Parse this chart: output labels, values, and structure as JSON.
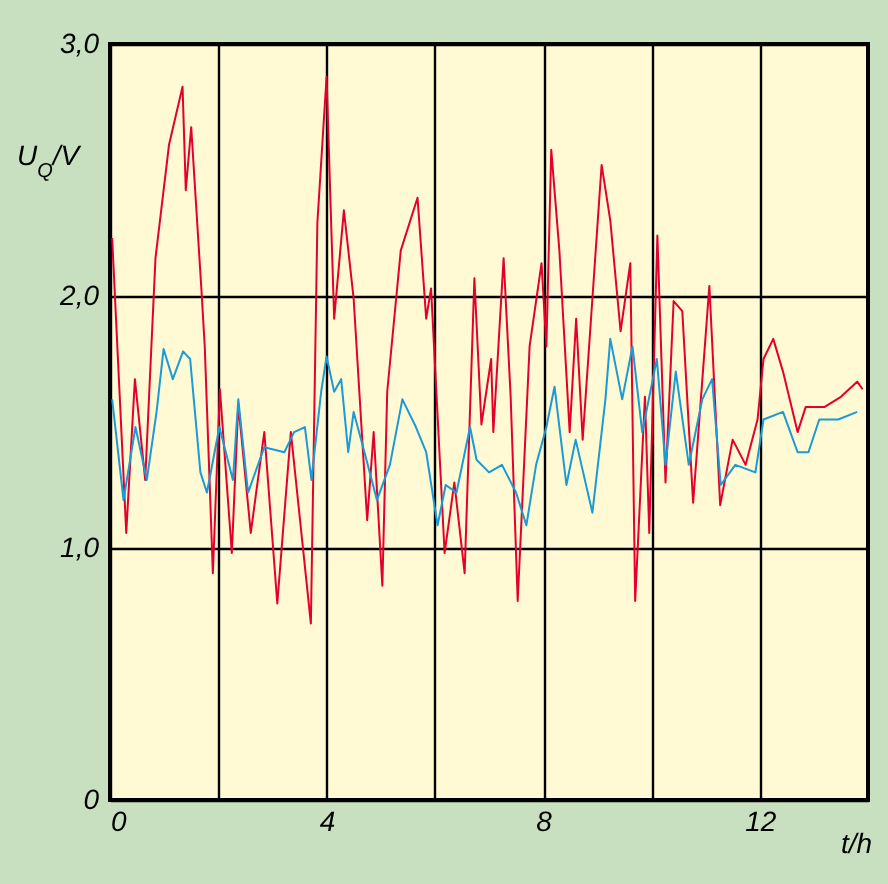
{
  "chart_data": {
    "type": "line",
    "xlabel": "t/h",
    "ylabel": "U$_{Q}$/V",
    "xlim": [
      0,
      14
    ],
    "ylim": [
      0,
      3
    ],
    "xticks": [
      0,
      {
        "value": 2,
        "label": null
      },
      4,
      {
        "value": 6,
        "label": null
      },
      8,
      {
        "value": 10,
        "label": null
      },
      12
    ],
    "yticks": [
      0,
      {
        "value": 1,
        "label": "1,0"
      },
      {
        "value": 2,
        "label": "2,0"
      },
      {
        "value": 3,
        "label": "3,0"
      }
    ],
    "grid": true,
    "line_style": "solid",
    "series": [
      {
        "color": "#e3002d",
        "x": [
          0.04,
          0.3,
          0.46,
          0.65,
          0.84,
          1.09,
          1.34,
          1.4,
          1.5,
          1.57,
          1.69,
          1.75,
          1.9,
          2.03,
          2.25,
          2.37,
          2.6,
          2.85,
          3.09,
          3.34,
          3.71,
          3.83,
          4.0,
          4.14,
          4.32,
          4.5,
          4.75,
          4.87,
          5.03,
          5.12,
          5.37,
          5.68,
          5.84,
          5.93,
          6.18,
          6.36,
          6.55,
          6.73,
          6.86,
          7.04,
          7.08,
          7.27,
          7.4,
          7.53,
          7.75,
          7.97,
          8.06,
          8.15,
          8.3,
          8.49,
          8.61,
          8.73,
          8.91,
          9.08,
          9.24,
          9.43,
          9.61,
          9.7,
          9.88,
          9.96,
          10.11,
          10.26,
          10.41,
          10.57,
          10.77,
          11.07,
          11.27,
          11.5,
          11.74,
          11.96,
          12.07,
          12.25,
          12.43,
          12.7,
          12.85,
          13.2,
          13.5,
          13.8,
          13.9
        ],
        "values": [
          2.23,
          1.06,
          1.67,
          1.27,
          2.15,
          2.6,
          2.83,
          2.42,
          2.67,
          2.43,
          2.02,
          1.8,
          0.9,
          1.63,
          0.98,
          1.57,
          1.06,
          1.46,
          0.78,
          1.46,
          0.7,
          2.29,
          2.87,
          1.91,
          2.34,
          1.99,
          1.11,
          1.46,
          0.85,
          1.62,
          2.18,
          2.39,
          1.91,
          2.03,
          0.98,
          1.26,
          0.9,
          2.07,
          1.49,
          1.75,
          1.46,
          2.15,
          1.6,
          0.79,
          1.8,
          2.13,
          1.8,
          2.58,
          2.18,
          1.46,
          1.91,
          1.43,
          1.99,
          2.52,
          2.3,
          1.86,
          2.13,
          0.79,
          1.6,
          1.06,
          2.24,
          1.26,
          1.98,
          1.94,
          1.18,
          2.04,
          1.17,
          1.43,
          1.33,
          1.51,
          1.75,
          1.83,
          1.7,
          1.46,
          1.56,
          1.56,
          1.6,
          1.66,
          1.63
        ]
      },
      {
        "color": "#1a9ad6",
        "x": [
          0.04,
          0.25,
          0.47,
          0.68,
          0.86,
          0.99,
          1.16,
          1.35,
          1.48,
          1.67,
          1.79,
          2.02,
          2.27,
          2.37,
          2.55,
          2.85,
          3.22,
          3.4,
          3.6,
          3.72,
          3.9,
          4.0,
          4.14,
          4.27,
          4.4,
          4.5,
          4.7,
          4.93,
          5.17,
          5.4,
          5.65,
          5.84,
          6.05,
          6.2,
          6.4,
          6.65,
          6.77,
          7.0,
          7.24,
          7.5,
          7.69,
          7.87,
          8.06,
          8.21,
          8.43,
          8.6,
          8.91,
          9.15,
          9.24,
          9.46,
          9.65,
          9.83,
          10.1,
          10.26,
          10.45,
          10.69,
          10.94,
          11.12,
          11.28,
          11.55,
          11.92,
          12.07,
          12.43,
          12.7,
          12.9,
          13.1,
          13.45,
          13.8
        ],
        "values": [
          1.59,
          1.19,
          1.48,
          1.27,
          1.54,
          1.79,
          1.67,
          1.78,
          1.75,
          1.3,
          1.22,
          1.48,
          1.27,
          1.59,
          1.22,
          1.4,
          1.38,
          1.46,
          1.48,
          1.27,
          1.62,
          1.76,
          1.62,
          1.67,
          1.38,
          1.54,
          1.38,
          1.19,
          1.33,
          1.59,
          1.48,
          1.38,
          1.09,
          1.25,
          1.22,
          1.48,
          1.35,
          1.3,
          1.33,
          1.22,
          1.09,
          1.33,
          1.48,
          1.64,
          1.25,
          1.43,
          1.14,
          1.59,
          1.83,
          1.59,
          1.8,
          1.46,
          1.75,
          1.33,
          1.7,
          1.33,
          1.59,
          1.67,
          1.25,
          1.33,
          1.3,
          1.51,
          1.54,
          1.38,
          1.38,
          1.51,
          1.51,
          1.54
        ]
      }
    ]
  }
}
